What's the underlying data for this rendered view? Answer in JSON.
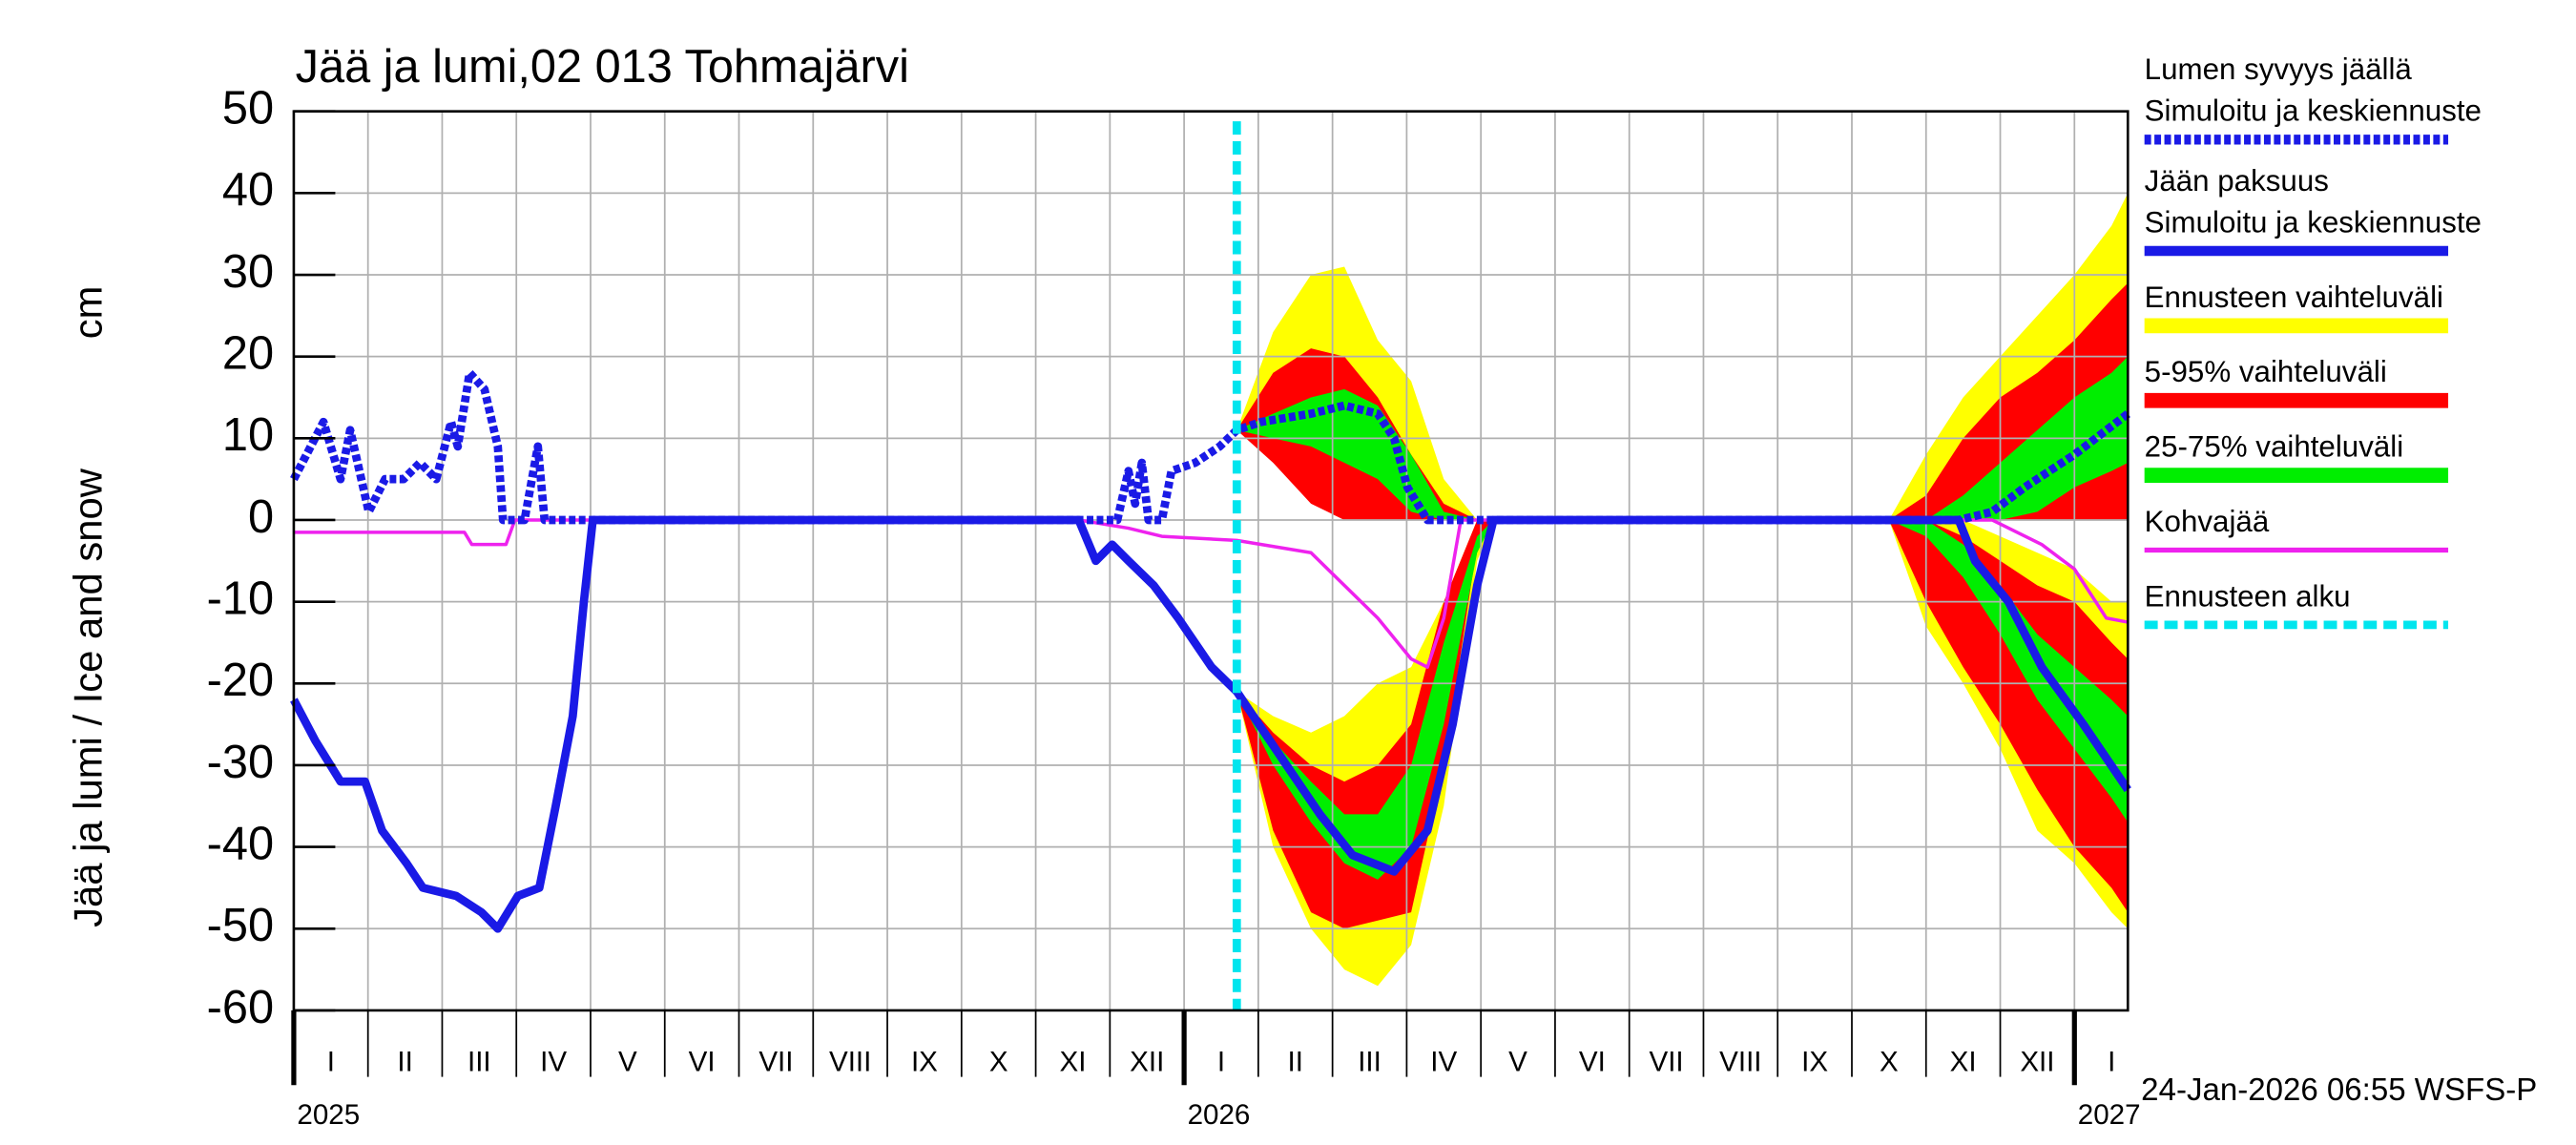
{
  "chart_data": {
    "type": "line",
    "title": "Jää ja lumi,02 013 Tohmajärvi",
    "ylabel": "Jää ja lumi / Ice and snow",
    "yunit": "cm",
    "timestamp": "24-Jan-2026 06:55 WSFS-P",
    "xlim": [
      0,
      24.72
    ],
    "ylim": [
      -60,
      50
    ],
    "yticks": [
      -60,
      -50,
      -40,
      -30,
      -20,
      -10,
      0,
      10,
      20,
      30,
      40,
      50
    ],
    "grid": true,
    "xticks": [
      {
        "value": 0,
        "label": "I"
      },
      {
        "value": 1,
        "label": "II"
      },
      {
        "value": 2,
        "label": "III"
      },
      {
        "value": 3,
        "label": "IV"
      },
      {
        "value": 4,
        "label": "V"
      },
      {
        "value": 5,
        "label": "VI"
      },
      {
        "value": 6,
        "label": "VII"
      },
      {
        "value": 7,
        "label": "VIII"
      },
      {
        "value": 8,
        "label": "IX"
      },
      {
        "value": 9,
        "label": "X"
      },
      {
        "value": 10,
        "label": "XI"
      },
      {
        "value": 11,
        "label": "XII"
      },
      {
        "value": 12,
        "label": "I"
      },
      {
        "value": 13,
        "label": "II"
      },
      {
        "value": 14,
        "label": "III"
      },
      {
        "value": 15,
        "label": "IV"
      },
      {
        "value": 16,
        "label": "V"
      },
      {
        "value": 17,
        "label": "VI"
      },
      {
        "value": 18,
        "label": "VII"
      },
      {
        "value": 19,
        "label": "VIII"
      },
      {
        "value": 20,
        "label": "IX"
      },
      {
        "value": 21,
        "label": "X"
      },
      {
        "value": 22,
        "label": "XI"
      },
      {
        "value": 23,
        "label": "XII"
      },
      {
        "value": 24,
        "label": "I"
      }
    ],
    "year_ticks": [
      {
        "value": 0,
        "label": "2025"
      },
      {
        "value": 12,
        "label": "2026"
      },
      {
        "value": 24,
        "label": "2027"
      }
    ],
    "series": [
      {
        "name": "Lumen syvyys jäällä",
        "subname": "Simuloitu ja keskiennuste",
        "color": "#1a1ae6",
        "dash": true,
        "x": [
          0,
          0.4,
          0.63,
          0.76,
          1.01,
          1.23,
          1.48,
          1.7,
          1.92,
          2.12,
          2.21,
          2.37,
          2.57,
          2.75,
          2.82,
          3.11,
          3.29,
          3.38,
          10.63,
          11.1,
          11.25,
          11.34,
          11.43,
          11.52,
          11.7,
          11.83,
          12.15,
          12.48,
          12.71,
          13.04,
          13.71,
          14.16,
          14.61,
          14.83,
          15.01,
          15.28,
          22.44,
          22.89,
          23.33,
          24,
          24.72
        ],
        "values": [
          5,
          12,
          5,
          11,
          1,
          5,
          5,
          7,
          5,
          12,
          9,
          18,
          16,
          9,
          0,
          0,
          9,
          0,
          0,
          0,
          6,
          2,
          7,
          0,
          0,
          6,
          7,
          9,
          11,
          12,
          13,
          14,
          13,
          10,
          4,
          0,
          0,
          1,
          4,
          8,
          13
        ]
      },
      {
        "name": "Jään paksuus",
        "subname": "Simuloitu ja keskiennuste",
        "color": "#1a1ae6",
        "dash": false,
        "x": [
          0,
          0.29,
          0.63,
          0.96,
          1.19,
          1.52,
          1.74,
          2.19,
          2.53,
          2.75,
          3.02,
          3.31,
          3.53,
          3.76,
          3.91,
          4.03,
          10.58,
          10.81,
          11.03,
          11.25,
          11.59,
          11.92,
          12.37,
          12.71,
          13.38,
          13.83,
          14.27,
          14.83,
          15.28,
          15.62,
          15.95,
          16.17,
          22.44,
          22.66,
          23.11,
          23.56,
          24.12,
          24.72
        ],
        "values": [
          -22,
          -27,
          -32,
          -32,
          -38,
          -42,
          -45,
          -46,
          -48,
          -50,
          -46,
          -45,
          -35,
          -24,
          -10,
          0,
          0,
          -5,
          -3,
          -5,
          -8,
          -12,
          -18,
          -21,
          -30,
          -36,
          -41,
          -43,
          -38,
          -25,
          -8,
          0,
          0,
          -5,
          -10,
          -18,
          -25,
          -33
        ]
      },
      {
        "name": "Kohvajää",
        "color": "#ee22ee",
        "dash": false,
        "thin": true,
        "x": [
          0,
          2.3,
          2.4,
          2.86,
          2.98,
          10.58,
          11.25,
          11.7,
          12.71,
          13.71,
          14.16,
          14.61,
          15.06,
          15.28,
          15.5,
          15.73,
          22.89,
          23.56,
          24,
          24.43,
          24.72
        ],
        "values": [
          -1.5,
          -1.5,
          -3,
          -3,
          0,
          0,
          -1,
          -2,
          -2.5,
          -4,
          -8,
          -12,
          -17,
          -18,
          -12,
          0,
          0,
          -3,
          -6,
          -12,
          -12.5
        ]
      }
    ],
    "bands": [
      {
        "name": "Ennusteen vaihteluväli",
        "color": "#ffff00",
        "x": [
          12.71,
          13.2,
          13.71,
          14.16,
          14.61,
          15.06,
          15.5,
          15.95,
          16.17,
          null,
          21.5,
          22,
          22.5,
          23,
          23.5,
          24,
          24.5,
          24.72
        ],
        "snow_high": [
          11,
          23,
          30,
          31,
          22,
          17,
          5,
          0,
          0,
          null,
          0,
          8,
          15,
          20,
          25,
          30,
          36,
          40
        ],
        "snow_low": [
          11,
          8,
          3,
          0,
          0,
          0,
          0,
          0,
          0,
          null,
          0,
          0,
          0,
          0,
          0,
          0,
          0,
          0
        ],
        "ice_high": [
          -21,
          -24,
          -26,
          -24,
          -20,
          -18,
          -10,
          0,
          0,
          null,
          0,
          0,
          0,
          -2,
          -4,
          -6,
          -10,
          -10
        ],
        "ice_low": [
          -21,
          -40,
          -50,
          -55,
          -57,
          -52,
          -35,
          -5,
          0,
          null,
          0,
          -13,
          -20,
          -28,
          -38,
          -42,
          -48,
          -50
        ]
      },
      {
        "name": "5-95% vaihteluväli",
        "color": "#ff0000",
        "x": [
          12.71,
          13.2,
          13.71,
          14.16,
          14.61,
          15.06,
          15.5,
          15.95,
          16.17,
          null,
          21.5,
          22,
          22.5,
          23,
          23.5,
          24,
          24.5,
          24.72
        ],
        "snow_high": [
          11,
          18,
          21,
          20,
          15,
          8,
          2,
          0,
          0,
          null,
          0,
          3,
          10,
          15,
          18,
          22,
          27,
          29
        ],
        "snow_low": [
          11,
          7,
          2,
          0,
          0,
          0,
          0,
          0,
          0,
          null,
          0,
          0,
          0,
          0,
          0,
          0,
          0,
          0
        ],
        "ice_high": [
          -21,
          -26,
          -30,
          -32,
          -30,
          -25,
          -10,
          0,
          0,
          null,
          0,
          0,
          -2,
          -5,
          -8,
          -10,
          -15,
          -17
        ],
        "ice_low": [
          -21,
          -38,
          -48,
          -50,
          -49,
          -48,
          -30,
          -3,
          0,
          null,
          0,
          -10,
          -18,
          -25,
          -33,
          -40,
          -45,
          -48
        ]
      },
      {
        "name": "25-75% vaihteluväli",
        "color": "#00ee00",
        "x": [
          12.71,
          13.2,
          13.71,
          14.16,
          14.61,
          15.06,
          15.5,
          15.95,
          16.17,
          null,
          21.5,
          22,
          22.5,
          23,
          23.5,
          24,
          24.5,
          24.72
        ],
        "snow_high": [
          11,
          13,
          15,
          16,
          14,
          8,
          1,
          0,
          0,
          null,
          0,
          0,
          3,
          7,
          11,
          15,
          18,
          20
        ],
        "snow_low": [
          11,
          10,
          9,
          7,
          5,
          1,
          0,
          0,
          0,
          null,
          0,
          0,
          0,
          0,
          1,
          4,
          6,
          7
        ],
        "ice_high": [
          -21,
          -27,
          -32,
          -36,
          -36,
          -30,
          -15,
          -2,
          0,
          null,
          0,
          0,
          -3,
          -8,
          -14,
          -18,
          -22,
          -24
        ],
        "ice_low": [
          -21,
          -30,
          -37,
          -42,
          -44,
          -40,
          -25,
          -4,
          0,
          null,
          0,
          -2,
          -7,
          -14,
          -22,
          -28,
          -34,
          -37
        ]
      }
    ],
    "forecast_start": {
      "name": "Ennusteen alku",
      "x": 12.71,
      "color": "#00e5ee"
    }
  }
}
